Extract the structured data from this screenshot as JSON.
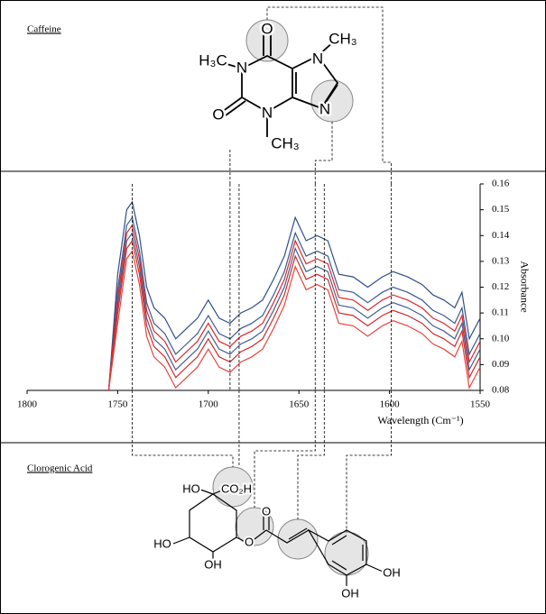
{
  "panels": {
    "top_label": "Caffeine",
    "bottom_label": "Clorogenic Acid"
  },
  "caffeine_atoms": [
    "O",
    "H₃C",
    "N",
    "N",
    "O",
    "N",
    "CH₃",
    "CH₃",
    "N"
  ],
  "chlorogenic_atoms": [
    "HO",
    "CO₂H",
    "HO",
    "O",
    "O",
    "OH",
    "OH",
    "OH"
  ],
  "chart_data": {
    "type": "line",
    "xlabel": "Wavelength (Cm⁻¹)",
    "ylabel": "Absorbance",
    "xlim": [
      1800,
      1550
    ],
    "xticks": [
      1800,
      1750,
      1700,
      1650,
      1600,
      1550
    ],
    "ylim": [
      0.08,
      0.16
    ],
    "yticks": [
      0.08,
      0.09,
      {
        "value": 0.1,
        "label": "0.10"
      },
      0.11,
      0.12,
      0.13,
      0.14,
      0.15,
      0.16
    ],
    "reference_lines": [
      1742,
      1688,
      1683,
      1641,
      1636,
      1599
    ],
    "x": [
      1755,
      1750,
      1745,
      1742,
      1738,
      1734,
      1730,
      1724,
      1718,
      1712,
      1706,
      1700,
      1694,
      1688,
      1682,
      1676,
      1670,
      1664,
      1658,
      1652,
      1646,
      1640,
      1634,
      1628,
      1620,
      1612,
      1604,
      1598,
      1590,
      1582,
      1576,
      1570,
      1564,
      1560,
      1556,
      1550
    ],
    "series": [
      {
        "color": "#2f4f86",
        "values": [
          0.08,
          0.125,
          0.15,
          0.153,
          0.14,
          0.12,
          0.112,
          0.108,
          0.1,
          0.104,
          0.108,
          0.115,
          0.108,
          0.106,
          0.11,
          0.112,
          0.115,
          0.123,
          0.132,
          0.147,
          0.138,
          0.14,
          0.138,
          0.125,
          0.124,
          0.12,
          0.124,
          0.126,
          0.124,
          0.121,
          0.117,
          0.115,
          0.112,
          0.118,
          0.1,
          0.108
        ]
      },
      {
        "color": "#3a5a90",
        "values": [
          0.08,
          0.119,
          0.144,
          0.147,
          0.134,
          0.114,
          0.106,
          0.102,
          0.094,
          0.098,
          0.102,
          0.109,
          0.102,
          0.1,
          0.104,
          0.106,
          0.109,
          0.117,
          0.126,
          0.141,
          0.132,
          0.134,
          0.132,
          0.119,
          0.118,
          0.114,
          0.118,
          0.12,
          0.118,
          0.115,
          0.111,
          0.109,
          0.106,
          0.112,
          0.094,
          0.102
        ]
      },
      {
        "color": "#44608f",
        "values": [
          0.08,
          0.113,
          0.138,
          0.141,
          0.128,
          0.108,
          0.1,
          0.096,
          0.088,
          0.092,
          0.096,
          0.103,
          0.096,
          0.094,
          0.098,
          0.1,
          0.103,
          0.111,
          0.12,
          0.135,
          0.126,
          0.128,
          0.126,
          0.113,
          0.112,
          0.108,
          0.112,
          0.114,
          0.112,
          0.109,
          0.105,
          0.103,
          0.1,
          0.106,
          0.088,
          0.096
        ]
      },
      {
        "color": "#e0262b",
        "values": [
          0.08,
          0.116,
          0.141,
          0.144,
          0.131,
          0.111,
          0.103,
          0.099,
          0.091,
          0.095,
          0.099,
          0.106,
          0.099,
          0.097,
          0.101,
          0.103,
          0.106,
          0.114,
          0.123,
          0.138,
          0.129,
          0.131,
          0.129,
          0.116,
          0.115,
          0.111,
          0.115,
          0.117,
          0.115,
          0.112,
          0.108,
          0.106,
          0.103,
          0.109,
          0.091,
          0.099
        ]
      },
      {
        "color": "#d42a2a",
        "values": [
          0.08,
          0.11,
          0.135,
          0.138,
          0.125,
          0.105,
          0.097,
          0.093,
          0.085,
          0.089,
          0.093,
          0.1,
          0.093,
          0.091,
          0.095,
          0.097,
          0.1,
          0.108,
          0.117,
          0.132,
          0.123,
          0.125,
          0.123,
          0.11,
          0.109,
          0.105,
          0.109,
          0.111,
          0.109,
          0.106,
          0.102,
          0.1,
          0.097,
          0.103,
          0.085,
          0.093
        ]
      },
      {
        "color": "#e8453c",
        "values": [
          0.08,
          0.106,
          0.131,
          0.134,
          0.121,
          0.101,
          0.093,
          0.089,
          0.081,
          0.085,
          0.089,
          0.096,
          0.089,
          0.087,
          0.091,
          0.093,
          0.096,
          0.104,
          0.113,
          0.128,
          0.119,
          0.121,
          0.119,
          0.106,
          0.105,
          0.101,
          0.105,
          0.107,
          0.105,
          0.102,
          0.098,
          0.096,
          0.093,
          0.099,
          0.081,
          0.089
        ]
      }
    ]
  }
}
